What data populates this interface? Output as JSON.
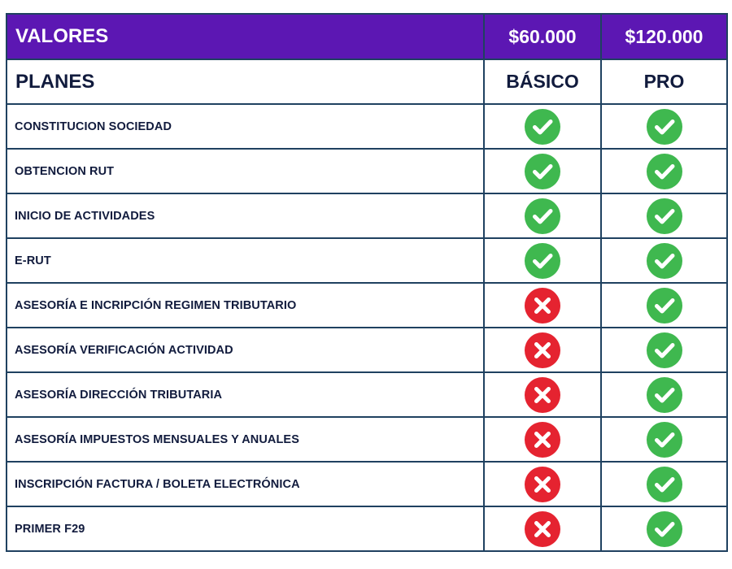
{
  "header": {
    "label": "VALORES",
    "prices": [
      "$60.000",
      "$120.000"
    ]
  },
  "plans": {
    "label": "PLANES",
    "names": [
      "BÁSICO",
      "PRO"
    ]
  },
  "features": [
    {
      "label": "CONSTITUCION SOCIEDAD",
      "basico": "check-icon",
      "pro": "check-icon"
    },
    {
      "label": "OBTENCION RUT",
      "basico": "check-icon",
      "pro": "check-icon"
    },
    {
      "label": "INICIO DE ACTIVIDADES",
      "basico": "check-icon",
      "pro": "check-icon"
    },
    {
      "label": "E-RUT",
      "basico": "check-icon",
      "pro": "check-icon"
    },
    {
      "label": "ASESORÍA E INCRIPCIÓN REGIMEN TRIBUTARIO",
      "basico": "cross-icon",
      "pro": "check-icon"
    },
    {
      "label": "ASESORÍA VERIFICACIÓN ACTIVIDAD",
      "basico": "cross-icon",
      "pro": "check-icon"
    },
    {
      "label": "ASESORÍA DIRECCIÓN TRIBUTARIA",
      "basico": "cross-icon",
      "pro": "check-icon"
    },
    {
      "label": "ASESORÍA IMPUESTOS MENSUALES Y ANUALES",
      "basico": "cross-icon",
      "pro": "check-icon"
    },
    {
      "label": "INSCRIPCIÓN FACTURA / BOLETA ELECTRÓNICA",
      "basico": "cross-icon",
      "pro": "check-icon"
    },
    {
      "label": "PRIMER F29",
      "basico": "cross-icon",
      "pro": "check-icon"
    }
  ],
  "colors": {
    "header_bg": "#5c17b3",
    "border": "#1f4160",
    "text": "#111b3d",
    "check": "#3fb84f",
    "cross": "#e52330"
  }
}
